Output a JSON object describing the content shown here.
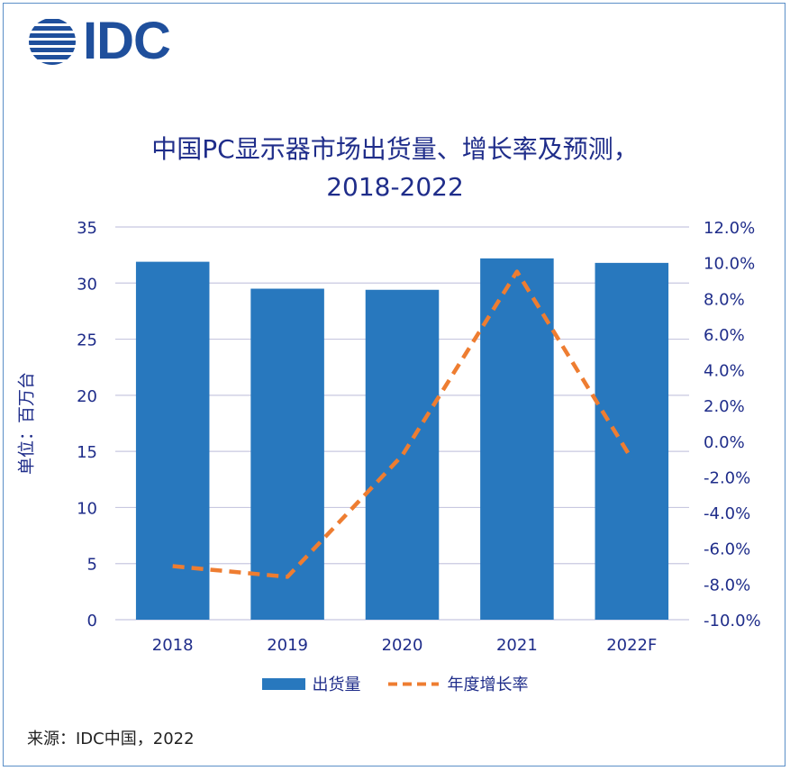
{
  "logo": {
    "text": "IDC"
  },
  "title_lines": [
    "中国PC显示器市场出货量、增长率及预测，",
    "2018-2022"
  ],
  "source": "来源：IDC中国，2022",
  "colors": {
    "bar": "#2878be",
    "line": "#ee7d31",
    "text": "#1f2d8a",
    "grid": "#c8c8e0",
    "logo": "#1f4f9c"
  },
  "chart_data": {
    "type": "bar",
    "categories": [
      "2018",
      "2019",
      "2020",
      "2021",
      "2022F"
    ],
    "ylabel": "单位：百万台",
    "ylim": [
      0,
      35
    ],
    "y_ticks": [
      "0",
      "5",
      "10",
      "15",
      "20",
      "25",
      "30",
      "35"
    ],
    "y2lim": [
      -10,
      12
    ],
    "y2_ticks": [
      "-10.0%",
      "-8.0%",
      "-6.0%",
      "-4.0%",
      "-2.0%",
      "0.0%",
      "2.0%",
      "4.0%",
      "6.0%",
      "8.0%",
      "10.0%",
      "12.0%"
    ],
    "series": [
      {
        "name": "出货量",
        "type": "bar",
        "axis": "left",
        "values": [
          31.9,
          29.5,
          29.4,
          32.2,
          31.8
        ]
      },
      {
        "name": "年度增长率",
        "type": "line",
        "style": "dashed",
        "axis": "right",
        "values": [
          -7.0,
          -7.6,
          -0.8,
          9.5,
          -1.0
        ]
      }
    ],
    "grid": true,
    "legend_position": "bottom"
  }
}
